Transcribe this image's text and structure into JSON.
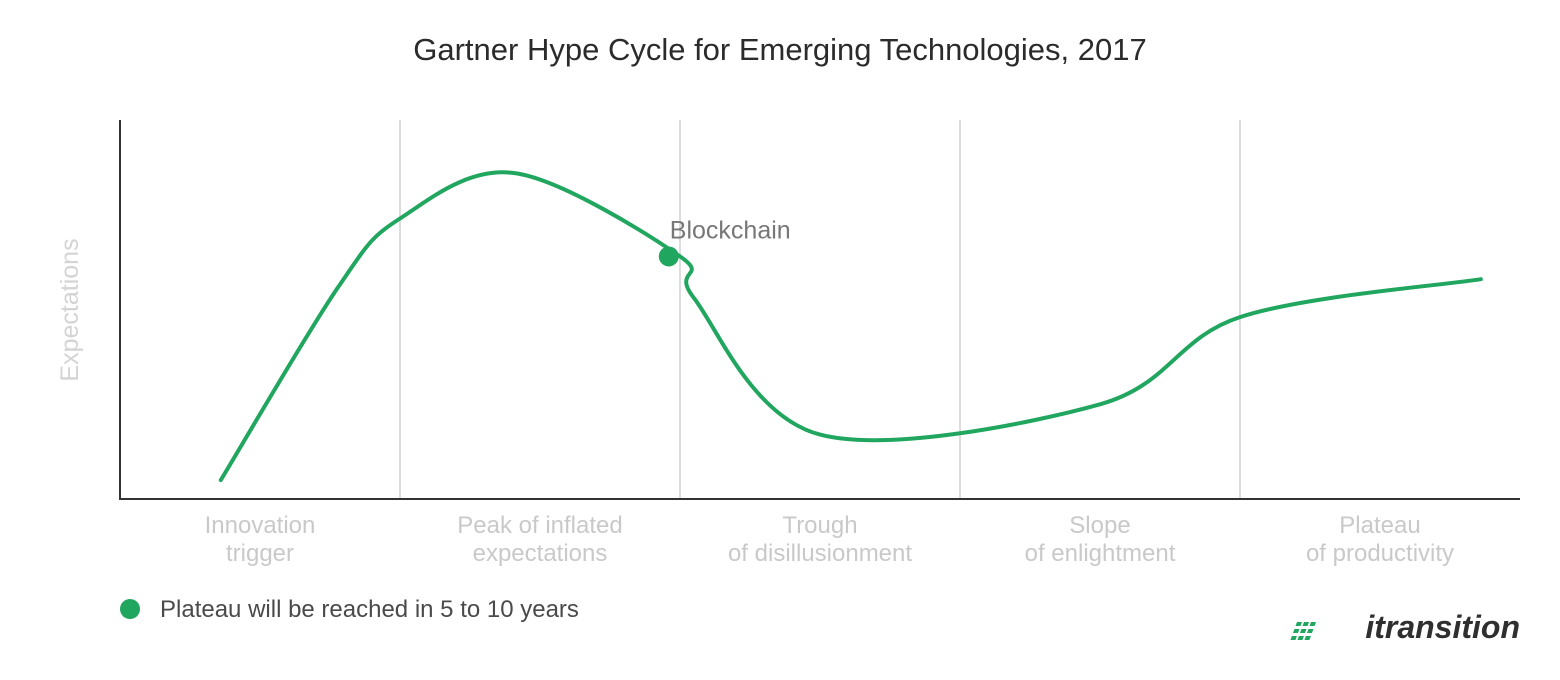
{
  "chart_data": {
    "type": "line",
    "title": "Gartner Hype Cycle for Emerging Technologies, 2017",
    "ylabel": "Expectations",
    "xlabel": "",
    "phases": [
      {
        "line1": "Innovation",
        "line2": "trigger"
      },
      {
        "line1": "Peak of inflated",
        "line2": "expectations"
      },
      {
        "line1": "Trough",
        "line2": "of disillusionment"
      },
      {
        "line1": "Slope",
        "line2": "of enlightment"
      },
      {
        "line1": "Plateau",
        "line2": "of productivity"
      }
    ],
    "xlim": [
      0,
      5
    ],
    "ylim": [
      0,
      100
    ],
    "grid": true,
    "curve": {
      "x": [
        0.36,
        0.78,
        1.0,
        1.41,
        2.0,
        2.05,
        2.5,
        3.5,
        4.0,
        4.86
      ],
      "y": [
        5,
        56,
        74,
        86,
        64,
        53,
        17,
        25,
        48,
        58
      ]
    },
    "points": [
      {
        "label": "Blockchain",
        "x": 1.96,
        "y": 64
      }
    ],
    "legend": {
      "position": "bottom-left",
      "label": "Plateau will be reached in 5 to 10 years"
    },
    "colors": {
      "curve": "#21a65f",
      "grid": "#dddddd",
      "axis": "#333333"
    }
  },
  "branding": {
    "logo": "itransition"
  }
}
